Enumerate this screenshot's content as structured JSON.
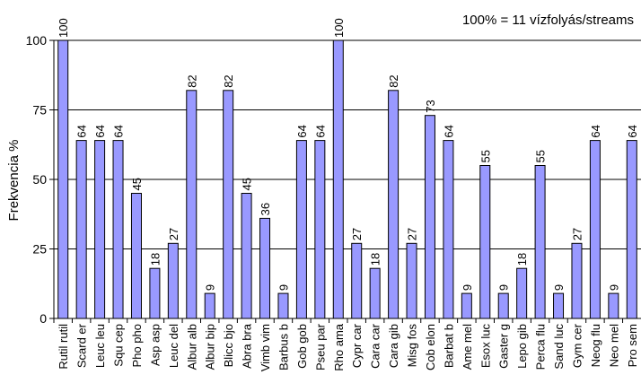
{
  "chart_data": {
    "type": "bar",
    "annotation": "100% = 11 vízfolyás/streams",
    "ylabel": "Frekvencia %",
    "xlabel": "",
    "title": "",
    "ylim": [
      0,
      100
    ],
    "yticks": [
      0,
      25,
      50,
      75,
      100
    ],
    "grid": true,
    "bar_color": "#9999ff",
    "categories": [
      "Rutil rutil",
      "Scard er",
      "Leuc leu",
      "Squ cep",
      "Pho pho",
      "Asp asp",
      "Leuc del",
      "Albur alb",
      "Albur bip",
      "Blicc bjo",
      "Abra bra",
      "Vimb vim",
      "Barbus b",
      "Gob gob",
      "Pseu par",
      "Rho ama",
      "Cypr car",
      "Cara car",
      "Cara gib",
      "Misg fos",
      "Cob elon",
      "Barbat b",
      "Ame mel",
      "Esox luc",
      "Gaster g",
      "Lepo gib",
      "Perca flu",
      "Sand luc",
      "Gym cer",
      "Neog flu",
      "Neo mel",
      "Pro sem"
    ],
    "values": [
      100,
      64,
      64,
      64,
      45,
      18,
      27,
      82,
      9,
      82,
      45,
      36,
      9,
      64,
      64,
      100,
      27,
      18,
      82,
      27,
      73,
      64,
      9,
      55,
      9,
      18,
      55,
      9,
      27,
      64,
      9,
      64
    ]
  }
}
